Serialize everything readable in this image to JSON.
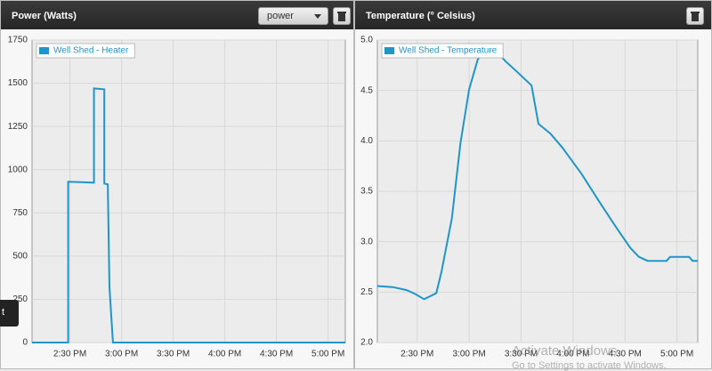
{
  "chart_data": [
    {
      "type": "line",
      "title": "Power (Watts)",
      "x": [
        "2:08 PM",
        "2:29 PM",
        "2:29 PM",
        "2:44 PM",
        "2:44 PM",
        "2:50 PM",
        "2:50 PM",
        "2:52 PM",
        "2:53 PM",
        "2:55 PM",
        "5:10 PM"
      ],
      "series": [
        {
          "name": "Well Shed - Heater",
          "color": "#1f95c8",
          "values": [
            0,
            0,
            930,
            925,
            1470,
            1465,
            920,
            915,
            320,
            0,
            0
          ]
        }
      ],
      "xlim": [
        "2:08 PM",
        "5:10 PM"
      ],
      "xticks": [
        "2:30 PM",
        "3:00 PM",
        "3:30 PM",
        "4:00 PM",
        "4:30 PM",
        "5:00 PM"
      ],
      "ylim": [
        0,
        1750
      ],
      "yticks": [
        0,
        250,
        500,
        750,
        1000,
        1250,
        1500,
        1750
      ],
      "grid": true,
      "legend": "upper left"
    },
    {
      "type": "line",
      "title": "Temperature (° Celsius)",
      "x": [
        "2:07 PM",
        "2:16 PM",
        "2:24 PM",
        "2:29 PM",
        "2:34 PM",
        "2:41 PM",
        "2:44 PM",
        "2:50 PM",
        "2:55 PM",
        "3:00 PM",
        "3:05 PM",
        "3:10 PM",
        "3:15 PM",
        "3:21 PM",
        "3:28 PM",
        "3:36 PM",
        "3:40 PM",
        "3:47 PM",
        "3:54 PM",
        "4:05 PM",
        "4:15 PM",
        "4:25 PM",
        "4:33 PM",
        "4:38 PM",
        "4:43 PM",
        "4:54 PM",
        "4:56 PM",
        "5:07 PM",
        "5:09 PM",
        "5:12 PM"
      ],
      "series": [
        {
          "name": "Well Shed - Temperature",
          "color": "#1f95c8",
          "values": [
            2.56,
            2.55,
            2.52,
            2.48,
            2.43,
            2.49,
            2.7,
            3.23,
            3.98,
            4.51,
            4.81,
            4.9,
            4.9,
            4.79,
            4.68,
            4.55,
            4.17,
            4.07,
            3.93,
            3.67,
            3.4,
            3.14,
            2.94,
            2.85,
            2.81,
            2.81,
            2.85,
            2.85,
            2.81,
            2.81
          ]
        }
      ],
      "xlim": [
        "2:07 PM",
        "5:12 PM"
      ],
      "xticks": [
        "2:30 PM",
        "3:00 PM",
        "3:30 PM",
        "4:00 PM",
        "4:30 PM",
        "5:00 PM"
      ],
      "ylim": [
        2,
        5
      ],
      "yticks": [
        {
          "value": 2,
          "label": "2.0"
        },
        2.5,
        {
          "value": 3,
          "label": "3.0"
        },
        3.5,
        {
          "value": 4,
          "label": "4.0"
        },
        4.5,
        {
          "value": 5,
          "label": "5.0"
        }
      ],
      "grid": true,
      "legend": "upper left"
    }
  ],
  "controls": {
    "metric_select": "power"
  },
  "side_tab": "t",
  "watermark": {
    "title": "Activate Windows",
    "subtitle": "Go to Settings to activate Windows."
  }
}
